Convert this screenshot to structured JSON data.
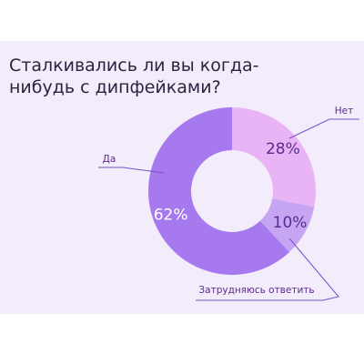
{
  "chart_data": {
    "type": "donut",
    "title": "Сталкивались ли вы когда-нибудь с дипфейками?",
    "categories": [
      "Нет",
      "Затрудняюсь ответить",
      "Да"
    ],
    "values": [
      28,
      10,
      62
    ],
    "value_labels": [
      "28%",
      "10%",
      "62%"
    ],
    "colors": [
      "#e8b4f6",
      "#c6a6f2",
      "#a679ef"
    ]
  }
}
